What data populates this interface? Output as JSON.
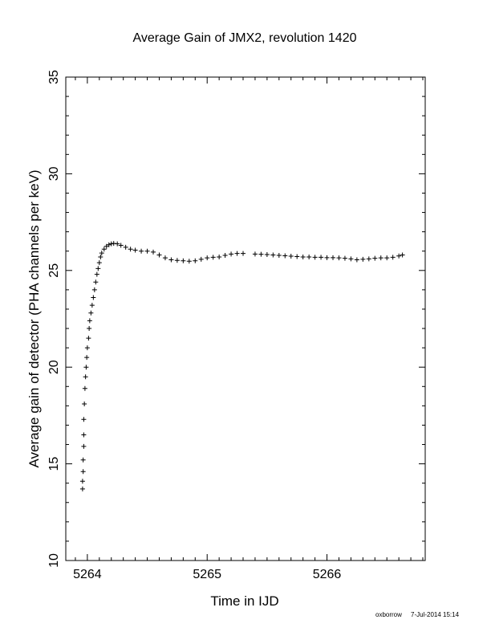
{
  "chart_data": {
    "type": "scatter",
    "title": "Average Gain of JMX2, revolution 1420",
    "xlabel": "Time in IJD",
    "ylabel": "Average gain of detector (PHA channels per keV)",
    "xlim": [
      5263.82,
      5266.82
    ],
    "ylim": [
      10,
      35
    ],
    "xticks": [
      5264,
      5265,
      5266
    ],
    "yticks": [
      10,
      15,
      20,
      25,
      30,
      35
    ],
    "grid": false,
    "marker": "+",
    "series": [
      {
        "points": [
          [
            5263.96,
            13.7
          ],
          [
            5263.96,
            14.1
          ],
          [
            5263.965,
            14.6
          ],
          [
            5263.965,
            15.2
          ],
          [
            5263.97,
            15.9
          ],
          [
            5263.97,
            16.5
          ],
          [
            5263.97,
            17.3
          ],
          [
            5263.975,
            18.1
          ],
          [
            5263.98,
            18.9
          ],
          [
            5263.985,
            19.5
          ],
          [
            5263.99,
            20.0
          ],
          [
            5263.995,
            20.5
          ],
          [
            5264.0,
            21.0
          ],
          [
            5264.01,
            21.5
          ],
          [
            5264.015,
            22.0
          ],
          [
            5264.02,
            22.4
          ],
          [
            5264.03,
            22.8
          ],
          [
            5264.04,
            23.2
          ],
          [
            5264.05,
            23.6
          ],
          [
            5264.06,
            24.0
          ],
          [
            5264.07,
            24.4
          ],
          [
            5264.08,
            24.8
          ],
          [
            5264.09,
            25.1
          ],
          [
            5264.1,
            25.4
          ],
          [
            5264.11,
            25.7
          ],
          [
            5264.12,
            25.9
          ],
          [
            5264.14,
            26.1
          ],
          [
            5264.16,
            26.25
          ],
          [
            5264.18,
            26.33
          ],
          [
            5264.2,
            26.38
          ],
          [
            5264.22,
            26.4
          ],
          [
            5264.25,
            26.38
          ],
          [
            5264.28,
            26.3
          ],
          [
            5264.32,
            26.2
          ],
          [
            5264.36,
            26.1
          ],
          [
            5264.4,
            26.05
          ],
          [
            5264.45,
            26.0
          ],
          [
            5264.5,
            26.0
          ],
          [
            5264.55,
            25.95
          ],
          [
            5264.6,
            25.8
          ],
          [
            5264.65,
            25.65
          ],
          [
            5264.7,
            25.55
          ],
          [
            5264.75,
            25.52
          ],
          [
            5264.8,
            25.5
          ],
          [
            5264.85,
            25.48
          ],
          [
            5264.9,
            25.5
          ],
          [
            5264.95,
            25.58
          ],
          [
            5265.0,
            25.65
          ],
          [
            5265.05,
            25.68
          ],
          [
            5265.1,
            25.7
          ],
          [
            5265.15,
            25.78
          ],
          [
            5265.2,
            25.85
          ],
          [
            5265.25,
            25.88
          ],
          [
            5265.3,
            25.88
          ],
          [
            5265.4,
            25.85
          ],
          [
            5265.45,
            25.84
          ],
          [
            5265.5,
            25.82
          ],
          [
            5265.55,
            25.8
          ],
          [
            5265.6,
            25.78
          ],
          [
            5265.65,
            25.76
          ],
          [
            5265.7,
            25.74
          ],
          [
            5265.75,
            25.72
          ],
          [
            5265.8,
            25.7
          ],
          [
            5265.85,
            25.7
          ],
          [
            5265.9,
            25.68
          ],
          [
            5265.95,
            25.68
          ],
          [
            5266.0,
            25.66
          ],
          [
            5266.05,
            25.66
          ],
          [
            5266.1,
            25.65
          ],
          [
            5266.15,
            25.63
          ],
          [
            5266.2,
            25.6
          ],
          [
            5266.25,
            25.55
          ],
          [
            5266.3,
            25.58
          ],
          [
            5266.35,
            25.6
          ],
          [
            5266.4,
            25.63
          ],
          [
            5266.45,
            25.65
          ],
          [
            5266.5,
            25.65
          ],
          [
            5266.55,
            25.68
          ],
          [
            5266.6,
            25.75
          ],
          [
            5266.63,
            25.8
          ]
        ]
      }
    ]
  },
  "footer": {
    "user": "oxborrow",
    "timestamp": "7-Jul-2014 15:14"
  }
}
